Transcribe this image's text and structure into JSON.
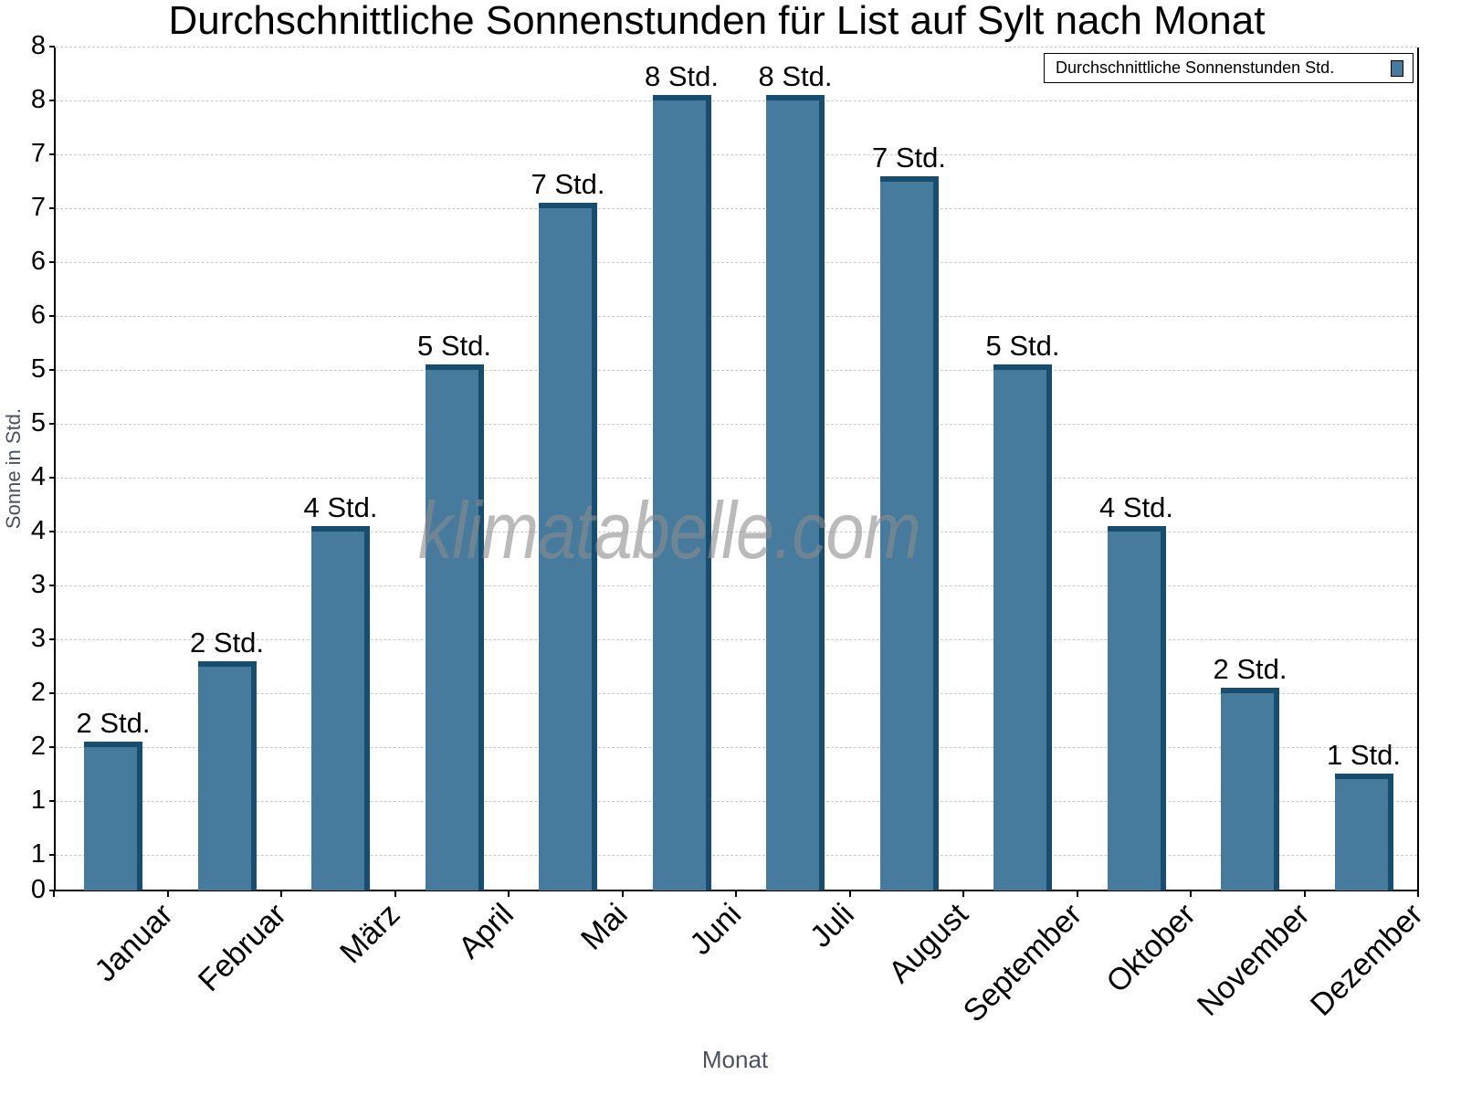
{
  "title": "Durchschnittliche Sonnenstunden für List auf Sylt nach Monat",
  "y_axis": {
    "title": "Sonne in Std.",
    "tick_labels": [
      "0",
      "1",
      "1",
      "2",
      "2",
      "3",
      "3",
      "4",
      "4",
      "5",
      "5",
      "6",
      "6",
      "7",
      "7",
      "8",
      "8"
    ]
  },
  "x_axis": {
    "title": "Monat"
  },
  "legend": {
    "label": "Durchschnittliche Sonnenstunden Std.",
    "color": "#467b9d"
  },
  "watermark": "klimatabelle.com",
  "bars": [
    {
      "month": "Januar",
      "label": "2 Std."
    },
    {
      "month": "Februar",
      "label": "2 Std."
    },
    {
      "month": "März",
      "label": "4 Std."
    },
    {
      "month": "April",
      "label": "5 Std."
    },
    {
      "month": "Mai",
      "label": "7 Std."
    },
    {
      "month": "Juni",
      "label": "8 Std."
    },
    {
      "month": "Juli",
      "label": "8 Std."
    },
    {
      "month": "August",
      "label": "7 Std."
    },
    {
      "month": "September",
      "label": "5 Std."
    },
    {
      "month": "Oktober",
      "label": "4 Std."
    },
    {
      "month": "November",
      "label": "2 Std."
    },
    {
      "month": "Dezember",
      "label": "1 Std."
    }
  ],
  "colors": {
    "bar_front": "#467b9d",
    "bar_side": "#174d6e",
    "grid": "#c8c8c8",
    "axis_title": "#4a525c"
  },
  "chart_data": {
    "type": "bar",
    "title": "Durchschnittliche Sonnenstunden für List auf Sylt nach Monat",
    "xlabel": "Monat",
    "ylabel": "Sonne in Std.",
    "categories": [
      "Januar",
      "Februar",
      "März",
      "April",
      "Mai",
      "Juni",
      "Juli",
      "August",
      "September",
      "Oktober",
      "November",
      "Dezember"
    ],
    "series": [
      {
        "name": "Durchschnittliche Sonnenstunden Std.",
        "values": [
          1.75,
          2.5,
          3.75,
          5.25,
          6.75,
          7.75,
          7.75,
          7.0,
          5.25,
          3.75,
          2.25,
          1.45
        ],
        "data_labels": [
          "2 Std.",
          "2 Std.",
          "4 Std.",
          "5 Std.",
          "7 Std.",
          "8 Std.",
          "8 Std.",
          "7 Std.",
          "5 Std.",
          "4 Std.",
          "2 Std.",
          "1 Std."
        ]
      }
    ],
    "ylim": [
      0.42,
      8.25
    ],
    "y_tick_step": 0.5,
    "grid": true,
    "legend_position": "top-right"
  }
}
